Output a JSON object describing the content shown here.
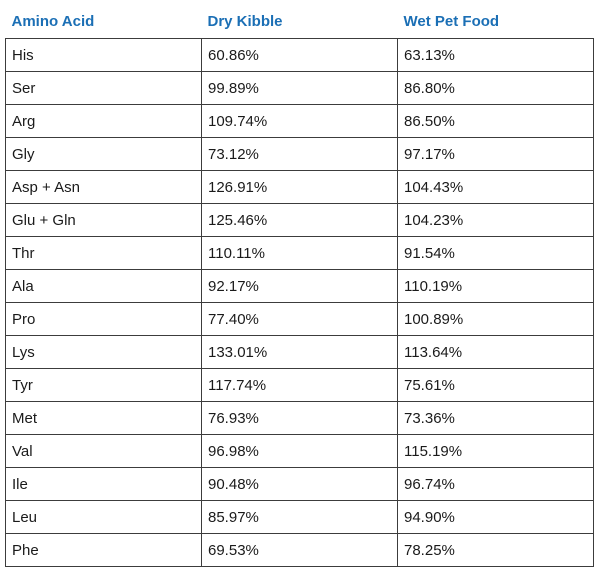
{
  "table": {
    "headers": [
      "Amino Acid",
      "Dry Kibble",
      "Wet Pet Food"
    ],
    "rows": [
      [
        "His",
        "60.86%",
        "63.13%"
      ],
      [
        "Ser",
        "99.89%",
        "86.80%"
      ],
      [
        "Arg",
        "109.74%",
        "86.50%"
      ],
      [
        "Gly",
        "73.12%",
        "97.17%"
      ],
      [
        "Asp + Asn",
        "126.91%",
        "104.43%"
      ],
      [
        "Glu + Gln",
        "125.46%",
        "104.23%"
      ],
      [
        "Thr",
        "110.11%",
        "91.54%"
      ],
      [
        "Ala",
        "92.17%",
        "110.19%"
      ],
      [
        "Pro",
        "77.40%",
        "100.89%"
      ],
      [
        "Lys",
        "133.01%",
        "113.64%"
      ],
      [
        "Tyr",
        "117.74%",
        "75.61%"
      ],
      [
        "Met",
        "76.93%",
        "73.36%"
      ],
      [
        "Val",
        "96.98%",
        "115.19%"
      ],
      [
        "Ile",
        "90.48%",
        "96.74%"
      ],
      [
        "Leu",
        "85.97%",
        "94.90%"
      ],
      [
        "Phe",
        "69.53%",
        "78.25%"
      ]
    ]
  },
  "colors": {
    "header_text": "#1b6fb5",
    "cell_text": "#1a1a1a",
    "border": "#3c3c3c"
  }
}
